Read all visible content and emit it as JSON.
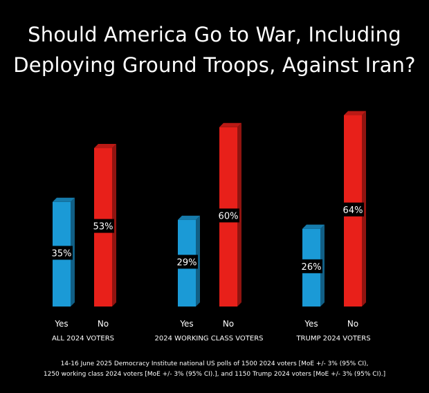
{
  "title_lines": [
    "Should America Go to War, Including",
    "Deploying Ground Troops, Against Iran?"
  ],
  "footnote_lines": [
    "14-16 June 2025 Democracy Institute national US polls of 1500 2024 voters [MoE +/- 3% (95% CI),",
    "1250 working class 2024 voters [MoE +/- 3% (95% CI).], and 1150 Trump 2024 voters [MoE +/- 3% (95% CI).]"
  ],
  "colors": {
    "yes": "#1b9ad6",
    "no": "#e8201a",
    "background": "#000000",
    "text": "#ffffff"
  },
  "chart_data": {
    "type": "bar",
    "categories": [
      "ALL 2024 VOTERS",
      "2024 WORKING CLASS VOTERS",
      "TRUMP 2024 VOTERS"
    ],
    "series": [
      {
        "name": "Yes",
        "values": [
          35,
          29,
          26
        ],
        "labels": [
          "35%",
          "29%",
          "26%"
        ]
      },
      {
        "name": "No",
        "values": [
          53,
          60,
          64
        ],
        "labels": [
          "53%",
          "60%",
          "64%"
        ]
      }
    ],
    "unit": "%",
    "ylim": [
      0,
      70
    ],
    "grid": false,
    "legend": "none"
  }
}
